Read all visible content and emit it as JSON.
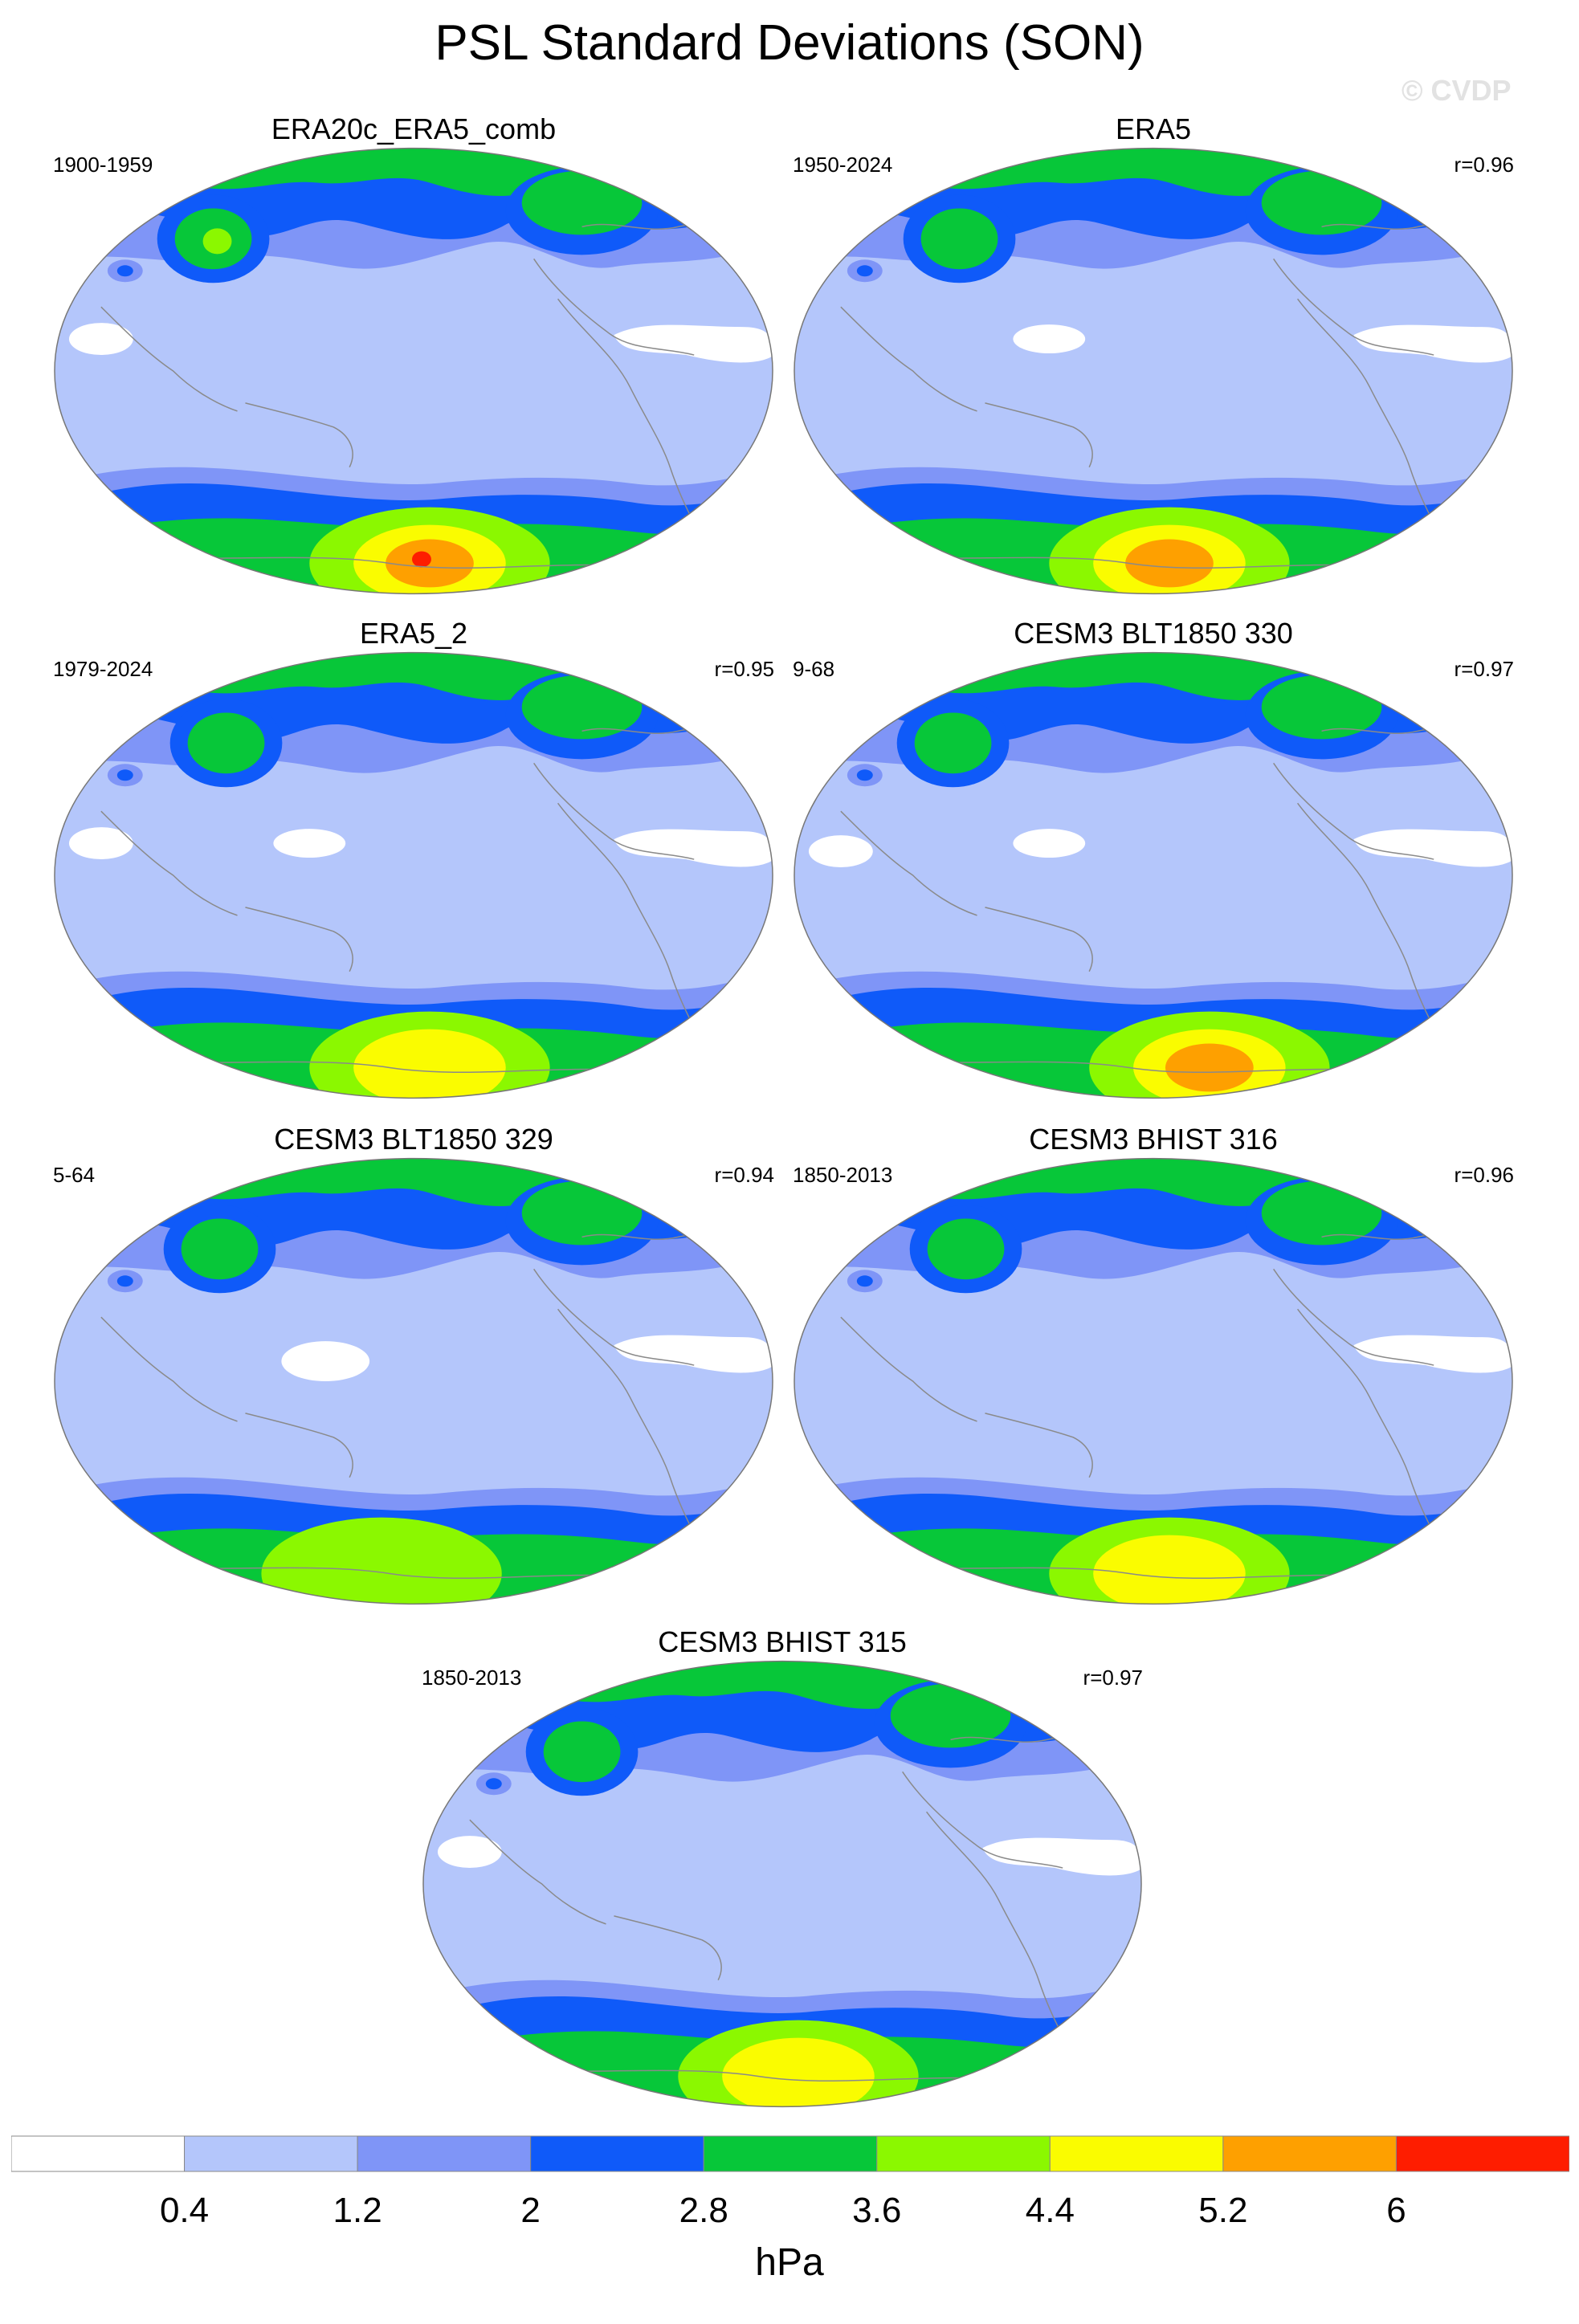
{
  "title": "PSL Standard Deviations (SON)",
  "watermark": "© CVDP",
  "colors": {
    "white": "#ffffff",
    "lightblue": "#b4c6fb",
    "midblue": "#7f95f7",
    "blue": "#0f5af9",
    "green": "#07c739",
    "lime": "#8bf800",
    "yellow": "#fafc00",
    "orange": "#fea000",
    "red": "#fe1d00",
    "coast": "#8a8a8a"
  },
  "panels": [
    {
      "id": "p1",
      "title": "ERA20c_ERA5_comb",
      "years": "1900-1959",
      "corr": "",
      "variant": 0
    },
    {
      "id": "p2",
      "title": "ERA5",
      "years": "1950-2024",
      "corr": "r=0.96",
      "variant": 1
    },
    {
      "id": "p3",
      "title": "ERA5_2",
      "years": "1979-2024",
      "corr": "r=0.95",
      "variant": 2
    },
    {
      "id": "p4",
      "title": "CESM3 BLT1850 330",
      "years": "9-68",
      "corr": "r=0.97",
      "variant": 3
    },
    {
      "id": "p5",
      "title": "CESM3 BLT1850 329",
      "years": "5-64",
      "corr": "r=0.94",
      "variant": 4
    },
    {
      "id": "p6",
      "title": "CESM3 BHIST 316",
      "years": "1850-2013",
      "corr": "r=0.96",
      "variant": 5
    },
    {
      "id": "p7",
      "title": "CESM3 BHIST 315",
      "years": "1850-2013",
      "corr": "r=0.97",
      "variant": 6
    }
  ],
  "colorbar": {
    "levels": [
      "0.4",
      "1.2",
      "2",
      "2.8",
      "3.6",
      "4.4",
      "5.2",
      "6"
    ],
    "fills": [
      "#ffffff",
      "#b4c6fb",
      "#7f95f7",
      "#0f5af9",
      "#07c739",
      "#8bf800",
      "#fafc00",
      "#fea000",
      "#fe1d00"
    ],
    "unit": "hPa"
  }
}
